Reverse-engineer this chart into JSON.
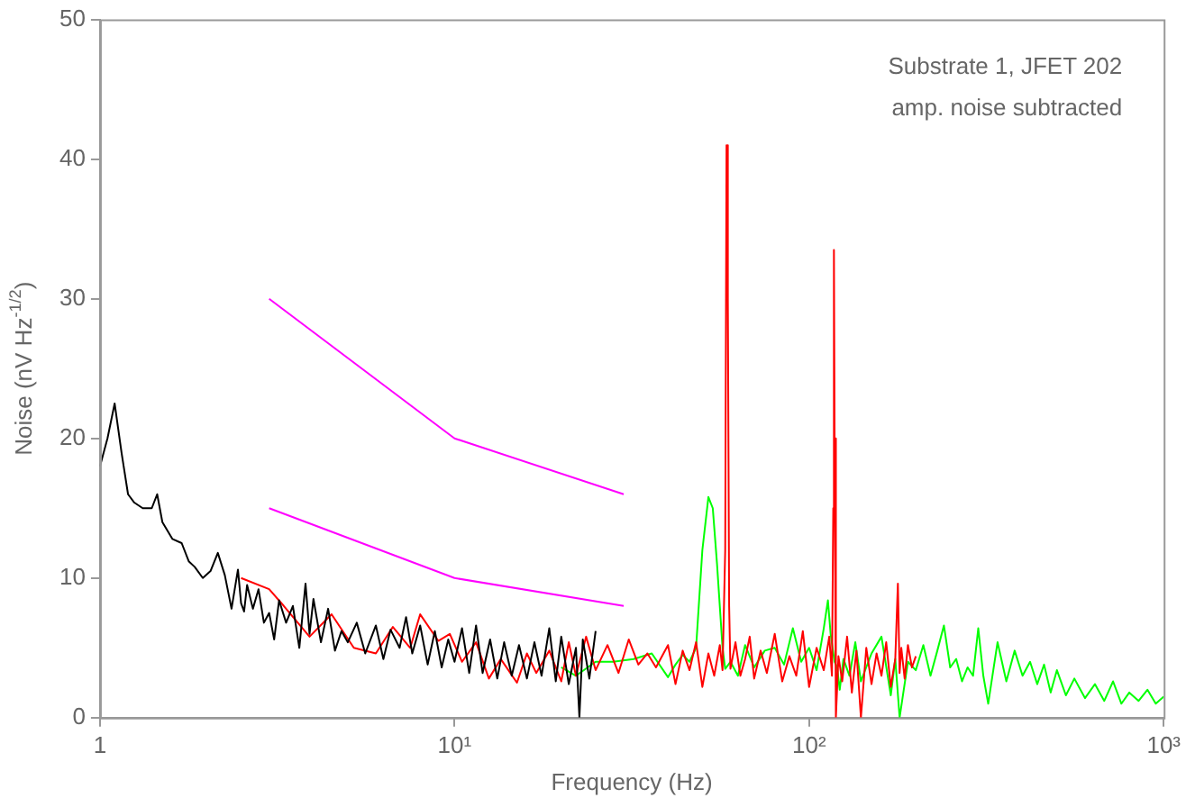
{
  "chart_data": {
    "type": "line",
    "xlabel": "Frequency (Hz)",
    "ylabel": "Noise (nV Hz$^{-1/2}$)",
    "log": "x",
    "xlim": [
      1,
      1000
    ],
    "ylim": [
      0,
      50
    ],
    "xticks": [
      1,
      {
        "value": 10,
        "label": "10¹"
      },
      {
        "value": 100,
        "label": "10²"
      },
      {
        "value": 1000,
        "label": "10³"
      }
    ],
    "yticks": [
      0,
      10,
      20,
      30,
      40,
      50
    ],
    "grid": false,
    "marker": "none",
    "annotations": [
      "Substrate 1, JFET 202",
      "amp. noise subtracted"
    ],
    "series": [
      {
        "color": "#000000",
        "x": [
          1,
          1.05,
          1.1,
          1.15,
          1.2,
          1.25,
          1.32,
          1.4,
          1.45,
          1.5,
          1.6,
          1.7,
          1.78,
          1.85,
          1.95,
          2.05,
          2.15,
          2.25,
          2.35,
          2.45,
          2.5,
          2.55,
          2.6,
          2.7,
          2.8,
          2.9,
          3.0,
          3.1,
          3.2,
          3.35,
          3.5,
          3.65,
          3.8,
          3.9,
          4.0,
          4.2,
          4.4,
          4.6,
          4.8,
          5.0,
          5.3,
          5.6,
          6.0,
          6.3,
          6.6,
          7.0,
          7.3,
          7.6,
          8.0,
          8.4,
          8.8,
          9.2,
          9.6,
          10,
          10.5,
          11,
          11.5,
          12,
          12.6,
          13.2,
          13.8,
          14.5,
          15.2,
          16,
          16.8,
          17.6,
          18.5,
          19.3,
          20,
          21,
          22,
          22.5,
          23,
          24,
          25
        ],
        "values": [
          18,
          20,
          22.5,
          19,
          16,
          15.4,
          15,
          15,
          16,
          14,
          12.8,
          12.5,
          11.2,
          10.8,
          10,
          10.5,
          11.8,
          10.2,
          7.8,
          10.6,
          8.2,
          7.6,
          9.5,
          7.8,
          9.2,
          6.8,
          7.5,
          5.6,
          8.4,
          6.8,
          8.0,
          5.0,
          9.6,
          6.0,
          8.5,
          5.4,
          7.8,
          4.8,
          6.2,
          5.4,
          6.8,
          4.6,
          6.6,
          4.2,
          6.3,
          5.0,
          7.2,
          4.6,
          6.6,
          3.8,
          6.2,
          3.6,
          5.6,
          4.0,
          6.4,
          3.2,
          6.6,
          3.2,
          5.6,
          2.8,
          5.4,
          3.0,
          5.2,
          2.8,
          5.4,
          3.0,
          6.4,
          2.6,
          5.8,
          2.4,
          5.0,
          0,
          5.6,
          2.8,
          6.2
        ]
      },
      {
        "color": "#ff0000",
        "x": [
          2.5,
          3,
          3.3,
          3.9,
          4.5,
          5.2,
          6,
          6.7,
          7.5,
          8,
          9,
          9.7,
          10.5,
          11.5,
          12.5,
          13.5,
          15,
          16,
          17,
          18.5,
          20,
          21,
          22,
          23.5,
          25,
          27,
          29,
          31,
          33,
          35,
          37,
          40,
          42,
          44,
          46,
          48,
          50,
          52,
          54,
          56,
          57,
          58,
          58.5,
          59,
          59.5,
          60,
          62,
          64,
          66,
          68,
          70,
          73,
          76,
          80,
          84,
          88,
          92,
          96,
          100,
          105,
          110,
          114,
          116,
          117,
          117.5,
          118,
          119,
          121,
          124,
          128,
          132,
          136,
          140,
          145,
          150,
          155,
          160,
          165,
          170,
          175,
          178,
          180,
          182,
          186,
          190,
          195,
          200
        ],
        "values": [
          10,
          9.2,
          8,
          5.8,
          7.4,
          5,
          4.6,
          6.5,
          5,
          7.4,
          5.5,
          6,
          4,
          5.4,
          2.8,
          4.2,
          2.5,
          4.6,
          3.2,
          4.8,
          2.6,
          5.4,
          3,
          5.8,
          3.4,
          5.2,
          3.2,
          5.6,
          3.8,
          4.6,
          3.6,
          5.2,
          2.4,
          4.8,
          3.4,
          5.4,
          2.2,
          4.6,
          3.0,
          5.2,
          3.4,
          12,
          41,
          30,
          8,
          3.5,
          5.4,
          3.0,
          4.2,
          5.8,
          2.8,
          4.8,
          3.2,
          6.0,
          2.6,
          4.4,
          3.0,
          6.2,
          2.2,
          5.0,
          3.4,
          5.8,
          3,
          15,
          33.5,
          20,
          0,
          4.4,
          2.6,
          5.8,
          1.8,
          4.8,
          0,
          5.0,
          2.4,
          4.6,
          3.0,
          5.4,
          2.2,
          4.2,
          9.6,
          3.2,
          5.0,
          2.8,
          5.2,
          3.6,
          4.4
        ]
      },
      {
        "color": "#00ff00",
        "x": [
          20,
          22,
          25,
          28,
          32,
          36,
          40,
          42,
          44,
          46,
          48,
          50,
          52,
          53.5,
          55,
          57,
          58,
          60,
          63,
          66,
          70,
          75,
          80,
          85,
          90,
          95,
          100,
          105,
          110,
          113,
          115,
          118,
          120,
          122,
          125,
          130,
          135,
          140,
          150,
          160,
          170,
          175,
          180,
          190,
          200,
          210,
          220,
          230,
          240,
          250,
          260,
          270,
          280,
          290,
          300,
          310,
          320,
          340,
          360,
          380,
          400,
          420,
          440,
          460,
          480,
          500,
          530,
          560,
          600,
          640,
          680,
          720,
          760,
          800,
          850,
          900,
          950,
          1000
        ],
        "values": [
          3.6,
          3.0,
          4.0,
          4.0,
          4.2,
          4.6,
          2.9,
          3.8,
          4.5,
          4.0,
          5.0,
          12,
          15.8,
          15,
          11,
          5,
          3.5,
          4.0,
          3.0,
          5.2,
          3.6,
          4.8,
          5.0,
          3.8,
          6.4,
          4.0,
          5.0,
          3.4,
          6.4,
          8.4,
          6.0,
          4.0,
          3.6,
          2.0,
          4.2,
          3.0,
          5.4,
          2.6,
          4.6,
          5.8,
          1.6,
          4.2,
          0,
          4.0,
          3.4,
          5.2,
          3.0,
          4.8,
          6.6,
          3.6,
          4.2,
          2.6,
          3.6,
          3.0,
          6.4,
          3.0,
          1.0,
          5.4,
          2.6,
          4.8,
          3.0,
          4.0,
          2.4,
          3.8,
          1.8,
          3.4,
          1.6,
          2.8,
          1.4,
          2.4,
          1.2,
          2.6,
          1.0,
          1.8,
          1.2,
          2.0,
          1.0,
          1.5
        ]
      },
      {
        "color": "#ff00ff",
        "x": [
          3,
          10,
          30
        ],
        "values": [
          30,
          20,
          16
        ]
      },
      {
        "color": "#ff00ff",
        "x": [
          3,
          10,
          30
        ],
        "values": [
          15,
          10,
          8
        ]
      }
    ]
  }
}
